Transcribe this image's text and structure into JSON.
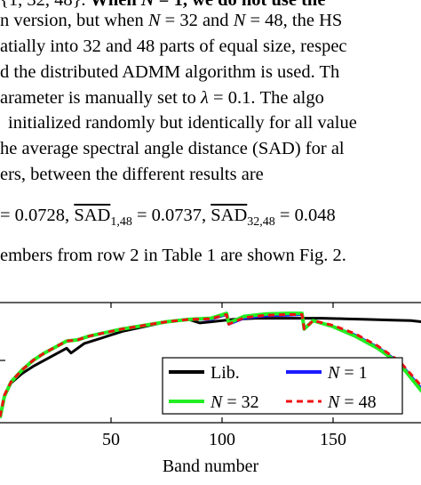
{
  "text": {
    "line0_a": "{1, 32, 48}.",
    "line0_b": " When ",
    "line0_N": "N",
    "line0_c": " = 1, we do not use the",
    "line1_a": "n version, but when ",
    "line1_N1": "N",
    "line1_b": " = 32 and ",
    "line1_N2": "N",
    "line1_c": " = 48, the HS",
    "line2": "atially into 32 and 48 parts of equal size, respec",
    "line3": "d the distributed ADMM algorithm is used.  Th",
    "line4_a": "arameter is manually set to ",
    "line4_lambda": "λ",
    "line4_b": " = 0.1.  The algo",
    "line5": "initialized randomly but identically for all value",
    "line6": "he average spectral angle distance (SAD) for al",
    "line7": "ers, between the different results are",
    "eq_a": "= 0.0728, ",
    "eq_sad1": "SAD",
    "eq_sub1": "1,48",
    "eq_b": " = 0.0737, ",
    "eq_sad2": "SAD",
    "eq_sub2": "32,48",
    "eq_c": " = 0.048",
    "line9": "embers from row 2 in Table 1 are shown Fig. 2."
  },
  "chart_data": {
    "type": "line",
    "xlabel": "Band number",
    "xticks": [
      50,
      100,
      150
    ],
    "xlim": [
      0,
      190
    ],
    "ylim": [
      0,
      1
    ],
    "legend": {
      "placement": "bottom-right",
      "entries": [
        {
          "label": "Lib.",
          "color": "#000000",
          "style": "solid"
        },
        {
          "label_var": "N",
          "label_rest": " = 1",
          "color": "#1a1aff",
          "style": "solid"
        },
        {
          "label_var": "N",
          "label_rest": " = 32",
          "color": "#22ee22",
          "style": "solid"
        },
        {
          "label_var": "N",
          "label_rest": " = 48",
          "color": "#ee1111",
          "style": "dashed"
        }
      ]
    },
    "series": [
      {
        "name": "Lib.",
        "color": "#000000",
        "dash": false,
        "width": 3,
        "x": [
          0,
          2,
          5,
          10,
          15,
          20,
          30,
          32,
          38,
          45,
          55,
          65,
          75,
          85,
          90,
          95,
          105,
          115,
          125,
          135,
          145,
          155,
          165,
          175,
          185,
          190
        ],
        "y": [
          0.05,
          0.22,
          0.33,
          0.41,
          0.47,
          0.52,
          0.62,
          0.58,
          0.66,
          0.7,
          0.76,
          0.8,
          0.84,
          0.86,
          0.83,
          0.84,
          0.86,
          0.87,
          0.87,
          0.87,
          0.87,
          0.865,
          0.86,
          0.855,
          0.85,
          0.84
        ]
      },
      {
        "name": "N = 1",
        "color": "#1a1aff",
        "dash": false,
        "width": 3,
        "x": [
          0,
          2,
          5,
          10,
          15,
          20,
          30,
          35,
          40,
          45,
          55,
          65,
          75,
          85,
          95,
          102,
          103,
          110,
          120,
          130,
          136,
          137,
          141,
          150,
          160,
          170,
          180,
          190
        ],
        "y": [
          0.05,
          0.23,
          0.34,
          0.44,
          0.52,
          0.58,
          0.68,
          0.69,
          0.72,
          0.74,
          0.78,
          0.81,
          0.84,
          0.86,
          0.86,
          0.9,
          0.82,
          0.87,
          0.89,
          0.895,
          0.9,
          0.78,
          0.85,
          0.8,
          0.73,
          0.63,
          0.5,
          0.28
        ]
      },
      {
        "name": "N = 32",
        "color": "#22ee22",
        "dash": false,
        "width": 4,
        "x": [
          0,
          2,
          5,
          10,
          15,
          20,
          30,
          35,
          40,
          45,
          55,
          65,
          75,
          85,
          95,
          102,
          103,
          110,
          120,
          130,
          136,
          137,
          141,
          150,
          160,
          170,
          180,
          190
        ],
        "y": [
          0.04,
          0.22,
          0.34,
          0.44,
          0.52,
          0.58,
          0.68,
          0.69,
          0.72,
          0.74,
          0.78,
          0.81,
          0.84,
          0.86,
          0.87,
          0.91,
          0.83,
          0.885,
          0.905,
          0.91,
          0.91,
          0.78,
          0.85,
          0.8,
          0.72,
          0.62,
          0.49,
          0.26
        ]
      },
      {
        "name": "N = 48",
        "color": "#ee1111",
        "dash": true,
        "width": 3,
        "x": [
          0,
          2,
          5,
          10,
          15,
          20,
          30,
          35,
          40,
          45,
          55,
          65,
          75,
          85,
          95,
          102,
          103,
          110,
          120,
          130,
          136,
          137,
          141,
          150,
          160,
          170,
          180,
          190
        ],
        "y": [
          0.05,
          0.23,
          0.34,
          0.44,
          0.52,
          0.58,
          0.68,
          0.69,
          0.72,
          0.74,
          0.78,
          0.81,
          0.84,
          0.86,
          0.865,
          0.9,
          0.82,
          0.875,
          0.895,
          0.9,
          0.9,
          0.78,
          0.85,
          0.81,
          0.74,
          0.64,
          0.51,
          0.3
        ]
      }
    ]
  }
}
